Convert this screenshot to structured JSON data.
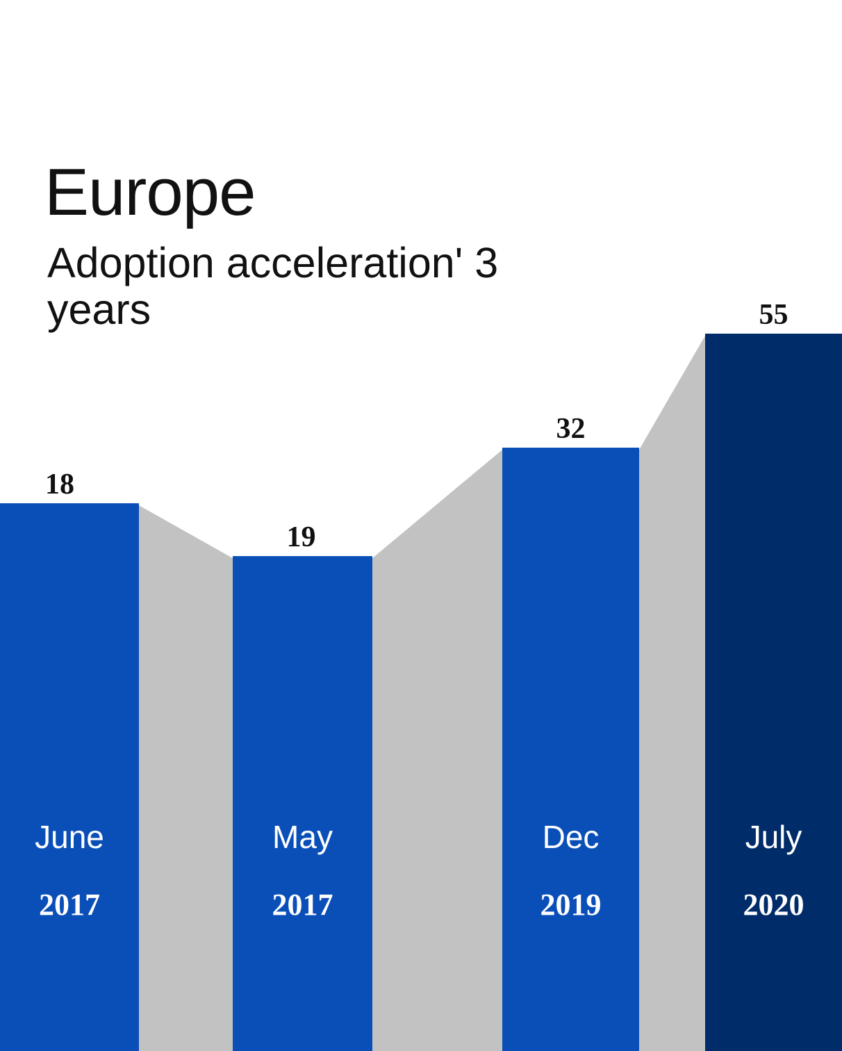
{
  "chart_data": {
    "type": "bar",
    "title": "Europe",
    "subtitle": "Adoption acceleration' 3 years",
    "categories": [
      {
        "month": "June",
        "year": "2017"
      },
      {
        "month": "May",
        "year": "2017"
      },
      {
        "month": "Dec",
        "year": "2019"
      },
      {
        "month": "July",
        "year": "2020"
      }
    ],
    "values": [
      18,
      19,
      32,
      55
    ],
    "value_labels": [
      "18",
      "19",
      "32",
      "55"
    ],
    "grid": false,
    "colors": {
      "bar": "#0a4fb8",
      "bar_highlight": "#002c69",
      "connector": "#c2c2c2"
    }
  }
}
